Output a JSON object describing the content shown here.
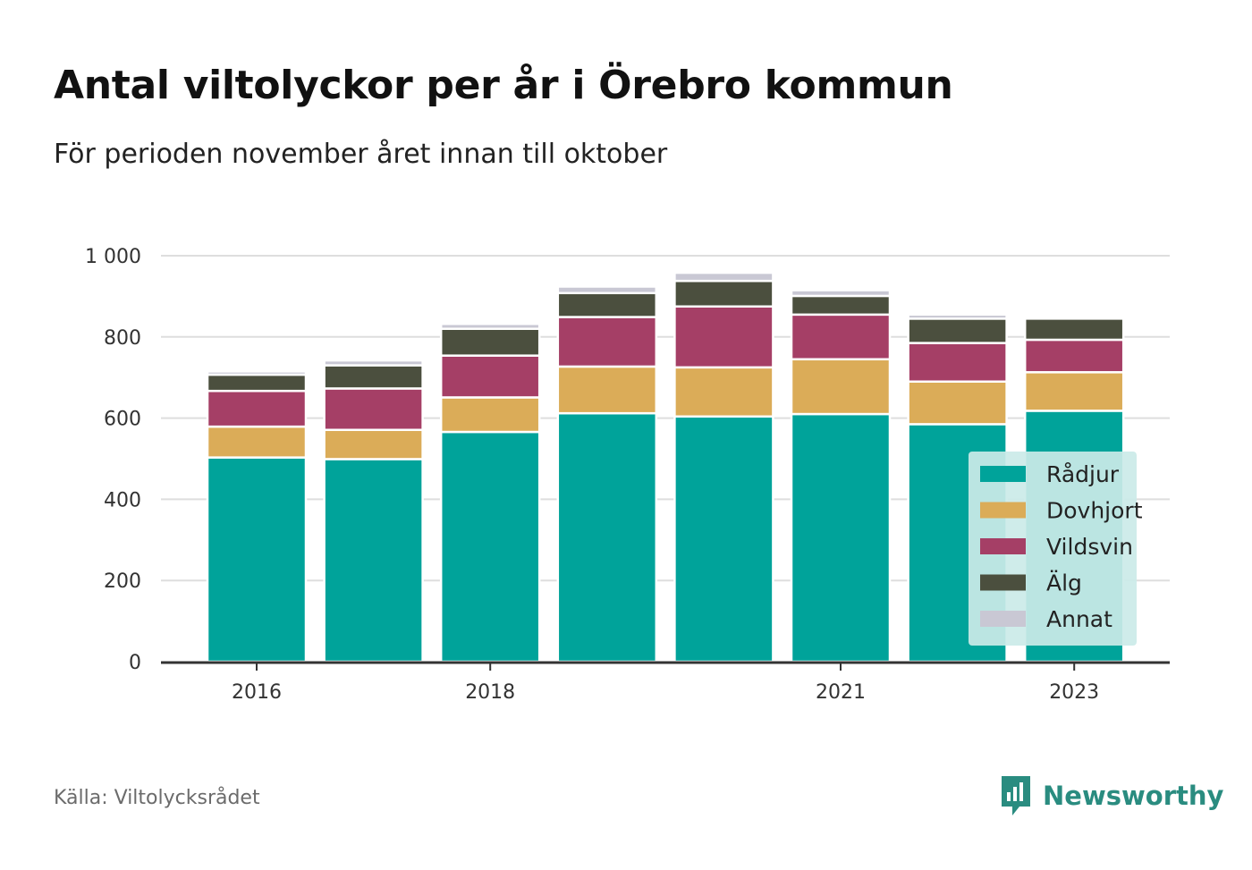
{
  "header": {
    "title": "Antal viltolyckor per år i Örebro kommun",
    "subtitle": "För perioden november året innan till oktober"
  },
  "footer": {
    "source": "Källa: Viltolycksrådet",
    "brand": "Newsworthy"
  },
  "colors": {
    "background": "#ffffff",
    "grid": "#dedede",
    "axis": "#333333",
    "brand": "#2a8c80",
    "legend_background": "#cbeae8"
  },
  "chart_data": {
    "type": "bar",
    "stacked": true,
    "title": "Antal viltolyckor per år i Örebro kommun",
    "subtitle": "För perioden november året innan till oktober",
    "categories": [
      "2016",
      "2017",
      "2018",
      "2019",
      "2020",
      "2021",
      "2022",
      "2023"
    ],
    "x_tick_labels": [
      "2016",
      "",
      "2018",
      "",
      "",
      "2021",
      "",
      "2023"
    ],
    "y_ticks": [
      0,
      200,
      400,
      600,
      800,
      1000
    ],
    "y_tick_labels": [
      "0",
      "200",
      "400",
      "600",
      "800",
      "1 000"
    ],
    "ylim": [
      0,
      1000
    ],
    "grid": true,
    "legend_position": "right",
    "series": [
      {
        "name": "Rådjur",
        "color": "#00a39a",
        "values": [
          503,
          499,
          566,
          612,
          604,
          610,
          585,
          618
        ]
      },
      {
        "name": "Dovhjort",
        "color": "#dbac58",
        "values": [
          76,
          72,
          85,
          115,
          121,
          135,
          105,
          95
        ]
      },
      {
        "name": "Vildsvin",
        "color": "#a53f66",
        "values": [
          88,
          102,
          103,
          122,
          150,
          110,
          95,
          80
        ]
      },
      {
        "name": "Älg",
        "color": "#4b4f3e",
        "values": [
          40,
          57,
          66,
          59,
          63,
          46,
          60,
          52
        ]
      },
      {
        "name": "Annat",
        "color": "#c9c8d4",
        "values": [
          8,
          12,
          12,
          16,
          20,
          14,
          10,
          0
        ]
      }
    ]
  }
}
